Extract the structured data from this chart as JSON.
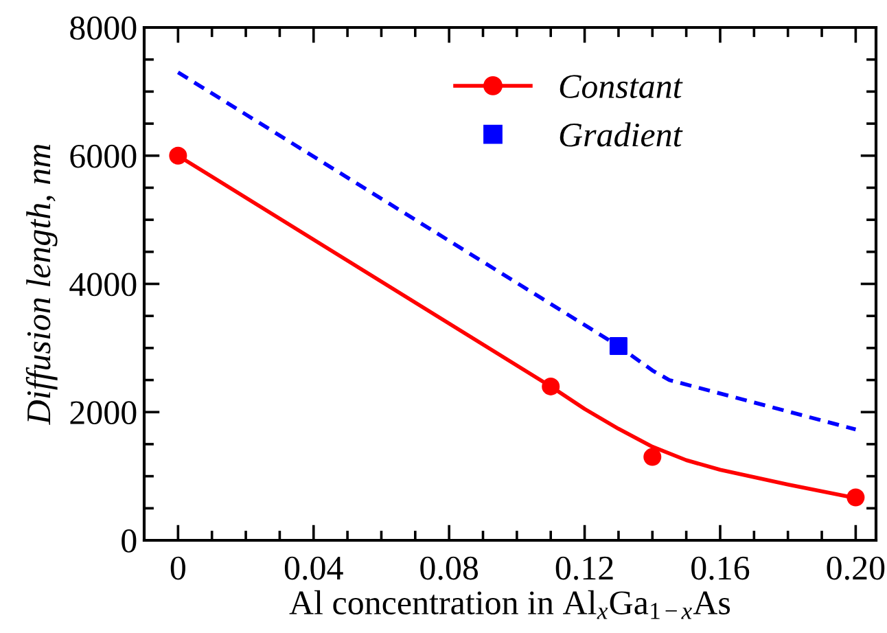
{
  "chart_data": {
    "type": "line",
    "xlabel": "Al concentration in Al$_{x}$Ga$_{1−x}$As",
    "ylabel": "Diffusion length, nm",
    "xlim": [
      -0.01,
      0.206
    ],
    "ylim": [
      0,
      8000
    ],
    "xticks": [
      {
        "value": -0.01,
        "label": null
      },
      0,
      {
        "value": 0.01,
        "label": null
      },
      {
        "value": 0.02,
        "label": null
      },
      {
        "value": 0.03,
        "label": null
      },
      0.04,
      {
        "value": 0.05,
        "label": null
      },
      {
        "value": 0.06,
        "label": null
      },
      {
        "value": 0.07,
        "label": null
      },
      0.08,
      {
        "value": 0.09,
        "label": null
      },
      {
        "value": 0.1,
        "label": null
      },
      {
        "value": 0.11,
        "label": null
      },
      0.12,
      {
        "value": 0.13,
        "label": null
      },
      {
        "value": 0.14,
        "label": null
      },
      {
        "value": 0.15,
        "label": null
      },
      0.16,
      {
        "value": 0.17,
        "label": null
      },
      {
        "value": 0.18,
        "label": null
      },
      {
        "value": 0.19,
        "label": null
      },
      {
        "value": 0.2,
        "label": "0.20"
      }
    ],
    "yticks": [
      0,
      {
        "value": 500,
        "label": null
      },
      {
        "value": 1000,
        "label": null
      },
      {
        "value": 1500,
        "label": null
      },
      2000,
      {
        "value": 2500,
        "label": null
      },
      {
        "value": 3000,
        "label": null
      },
      {
        "value": 3500,
        "label": null
      },
      4000,
      {
        "value": 4500,
        "label": null
      },
      {
        "value": 5000,
        "label": null
      },
      {
        "value": 5500,
        "label": null
      },
      6000,
      {
        "value": 6500,
        "label": null
      },
      {
        "value": 7000,
        "label": null
      },
      {
        "value": 7500,
        "label": null
      },
      8000
    ],
    "grid": false,
    "legend": "top",
    "series": [
      {
        "color": "#ff0000",
        "line_style": "solid",
        "marker": "none",
        "x": [
          0,
          0.055,
          0.11,
          0.12,
          0.13,
          0.14,
          0.15,
          0.16,
          0.18,
          0.2
        ],
        "values": [
          6000,
          4200,
          2400,
          2050,
          1740,
          1460,
          1250,
          1100,
          870,
          660
        ]
      },
      {
        "color": "#0000ff",
        "line_style": "dashed",
        "marker": "none",
        "x": [
          0,
          0.13,
          0.14,
          0.145,
          0.2
        ],
        "values": [
          7300,
          3030,
          2650,
          2500,
          1730
        ]
      },
      {
        "type": "scatter",
        "name": "Constant",
        "color": "#ff0000",
        "marker": "circle",
        "line_style": "solid",
        "x": [
          0,
          0.11,
          0.14,
          0.2
        ],
        "values": [
          6000,
          2400,
          1300,
          670
        ]
      },
      {
        "type": "scatter",
        "name": "Gradient",
        "color": "#0000ff",
        "marker": "square",
        "x": [
          0.13
        ],
        "values": [
          3030
        ]
      }
    ]
  }
}
